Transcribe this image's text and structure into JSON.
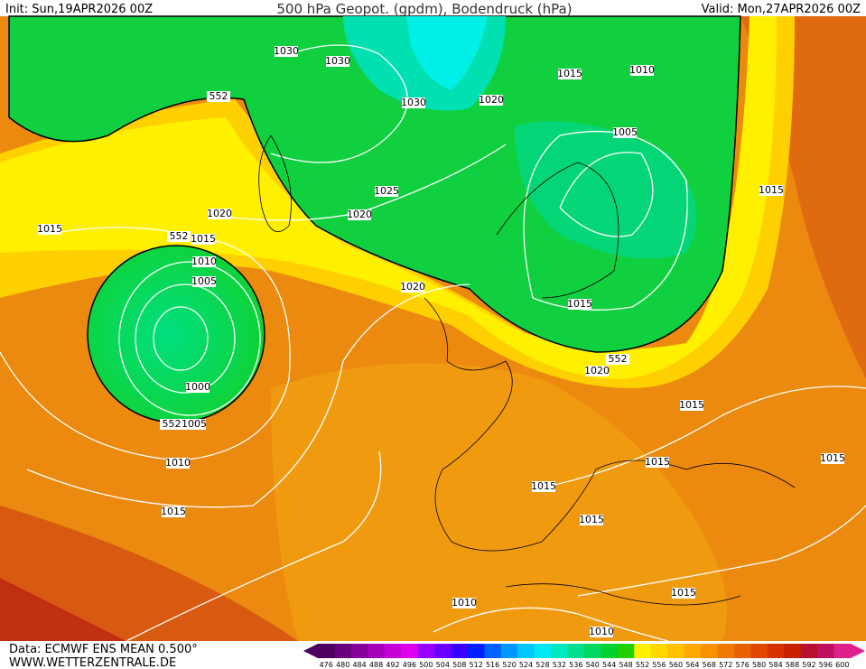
{
  "header": {
    "init": "Init: Sun,19APR2026 00Z",
    "title": "500 hPa Geopot. (gpdm), Bodendruck (hPa)",
    "valid": "Valid: Mon,27APR2026 00Z"
  },
  "isobar_labels": [
    1030,
    1030,
    1030,
    1020,
    1015,
    1010,
    1005,
    552,
    1025,
    1020,
    1020,
    1015,
    552,
    1015,
    1010,
    1005,
    1020,
    1015,
    1015,
    1000,
    552,
    1005,
    552,
    1020,
    1015,
    1010,
    1015,
    1015,
    1015,
    1015,
    1015,
    1015,
    1010,
    1010
  ],
  "footer": {
    "source": "Data: ECMWF ENS MEAN 0.500°",
    "site": "WWW.WETTERZENTRALE.DE"
  },
  "colorbar": {
    "labels": [
      476,
      480,
      484,
      488,
      492,
      496,
      500,
      504,
      508,
      512,
      516,
      520,
      524,
      528,
      532,
      536,
      540,
      544,
      548,
      552,
      556,
      560,
      564,
      568,
      572,
      576,
      580,
      584,
      588,
      592,
      596,
      600
    ],
    "colors": [
      "#4b0060",
      "#68007e",
      "#86009c",
      "#a400ba",
      "#c800d8",
      "#e000f0",
      "#9a00ff",
      "#6a00ff",
      "#3a00ff",
      "#0020ff",
      "#0060ff",
      "#0098ff",
      "#00c8ff",
      "#00e8f0",
      "#00e8c0",
      "#00e090",
      "#00d860",
      "#00d030",
      "#20d000",
      "#fff000",
      "#ffd800",
      "#ffc000",
      "#ffa800",
      "#f89000",
      "#f07800",
      "#e86000",
      "#e04800",
      "#d83000",
      "#c82000",
      "#b81030",
      "#c01060",
      "#e0208a"
    ]
  }
}
